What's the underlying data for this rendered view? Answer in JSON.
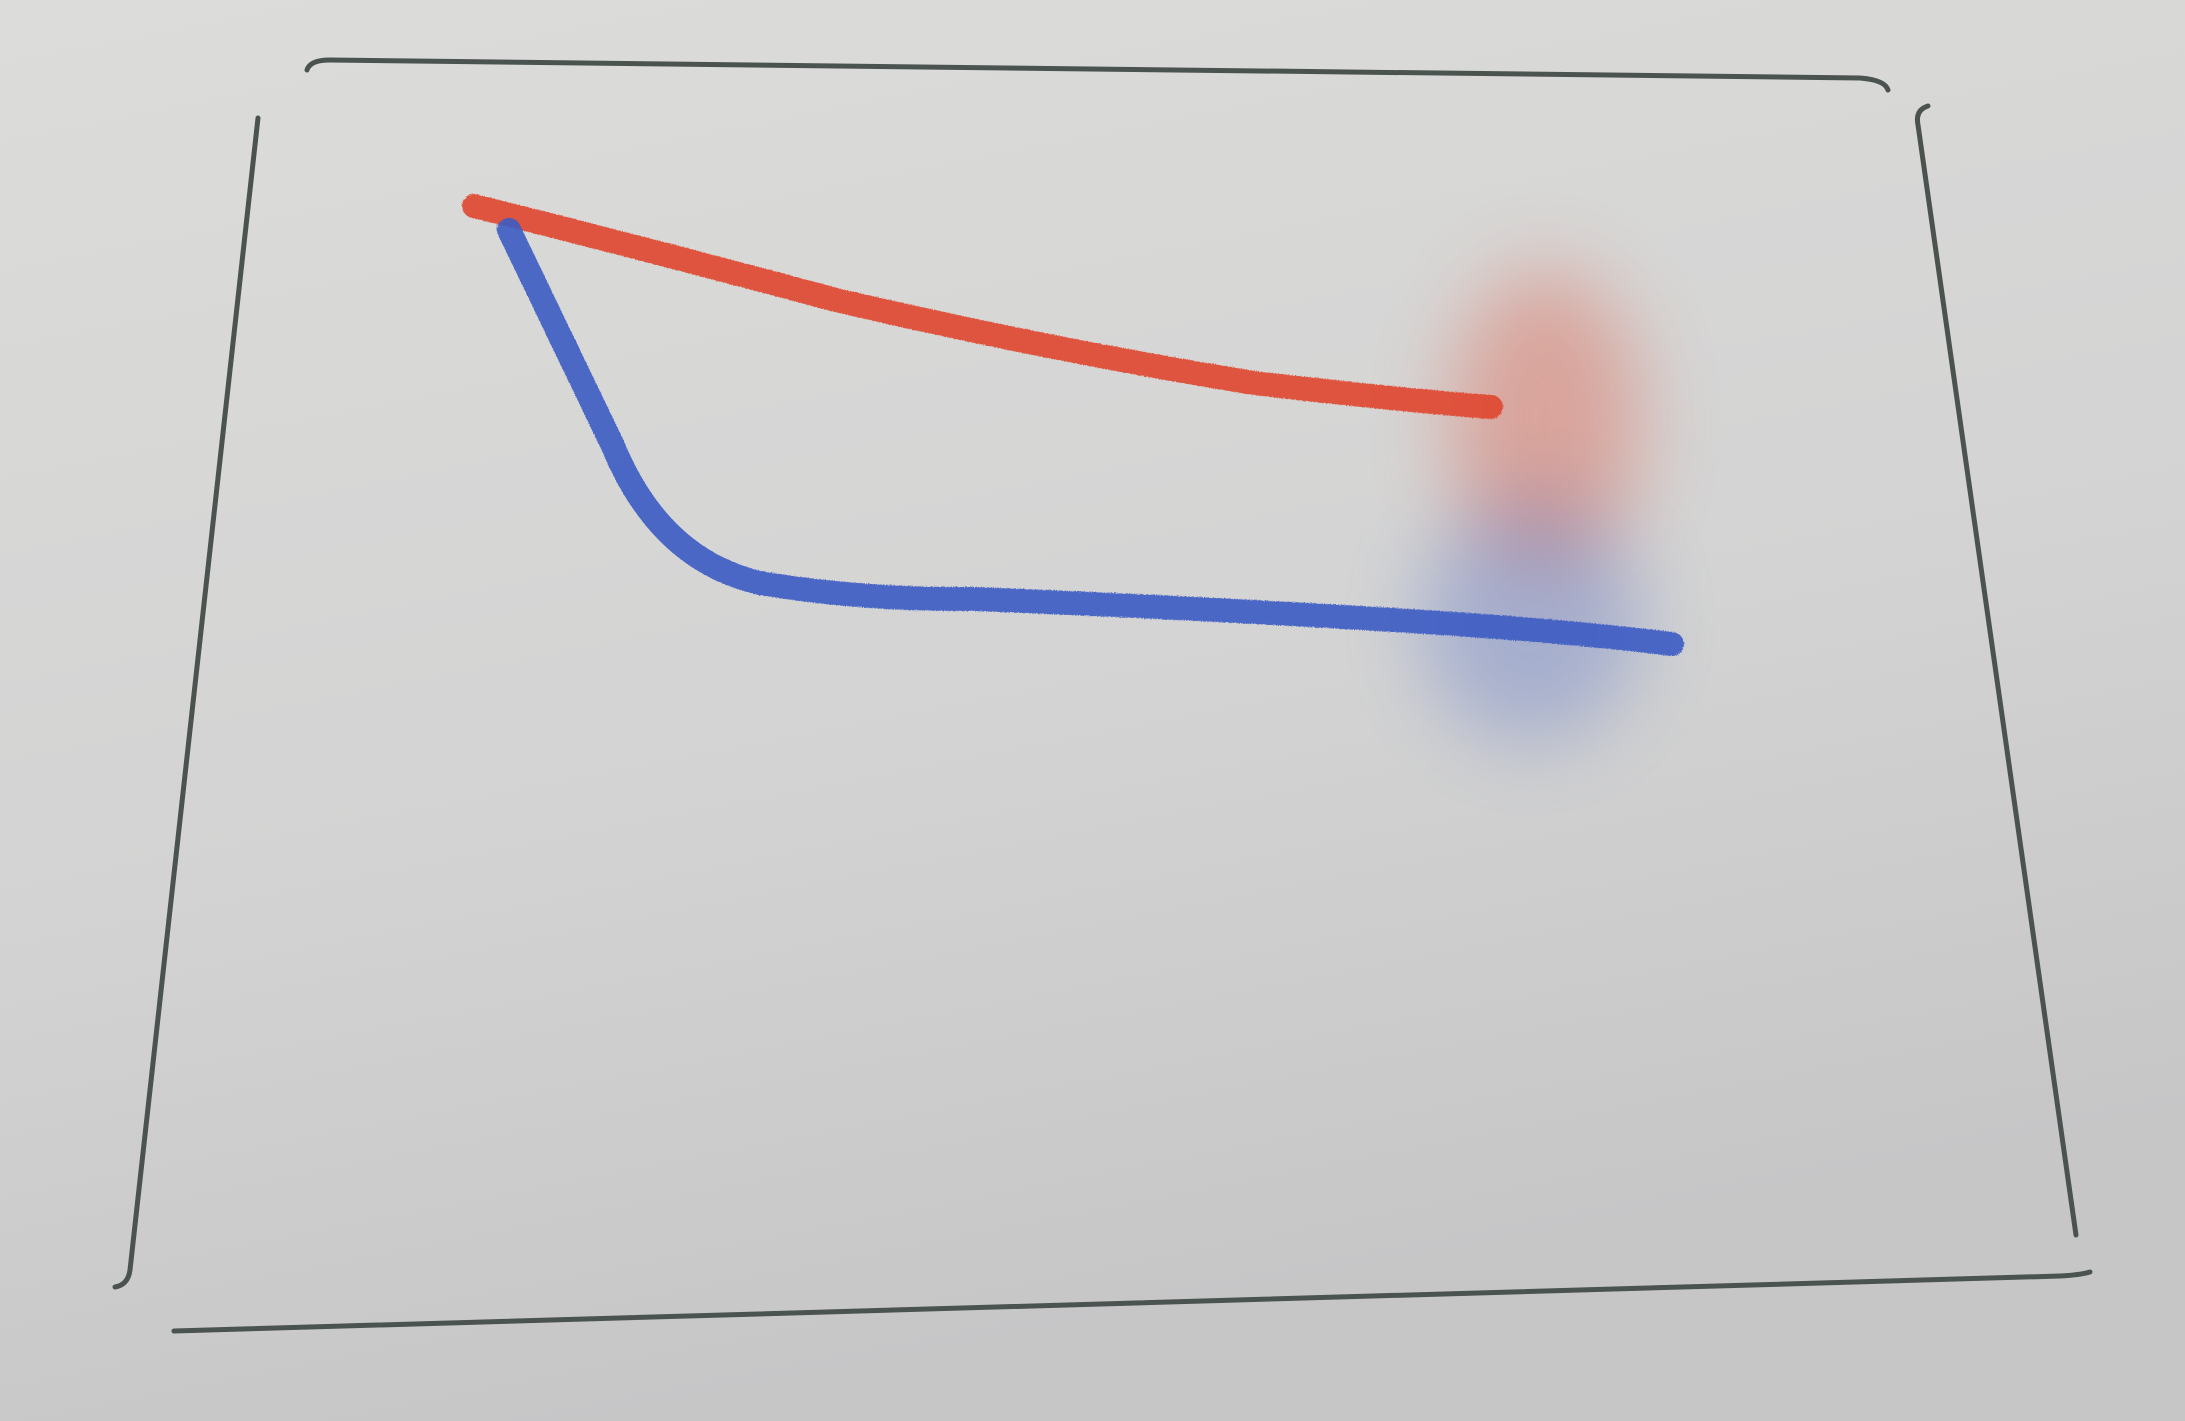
{
  "strokes": [
    {
      "color": "#e04a33"
    },
    {
      "color": "#3d5cc4"
    }
  ]
}
